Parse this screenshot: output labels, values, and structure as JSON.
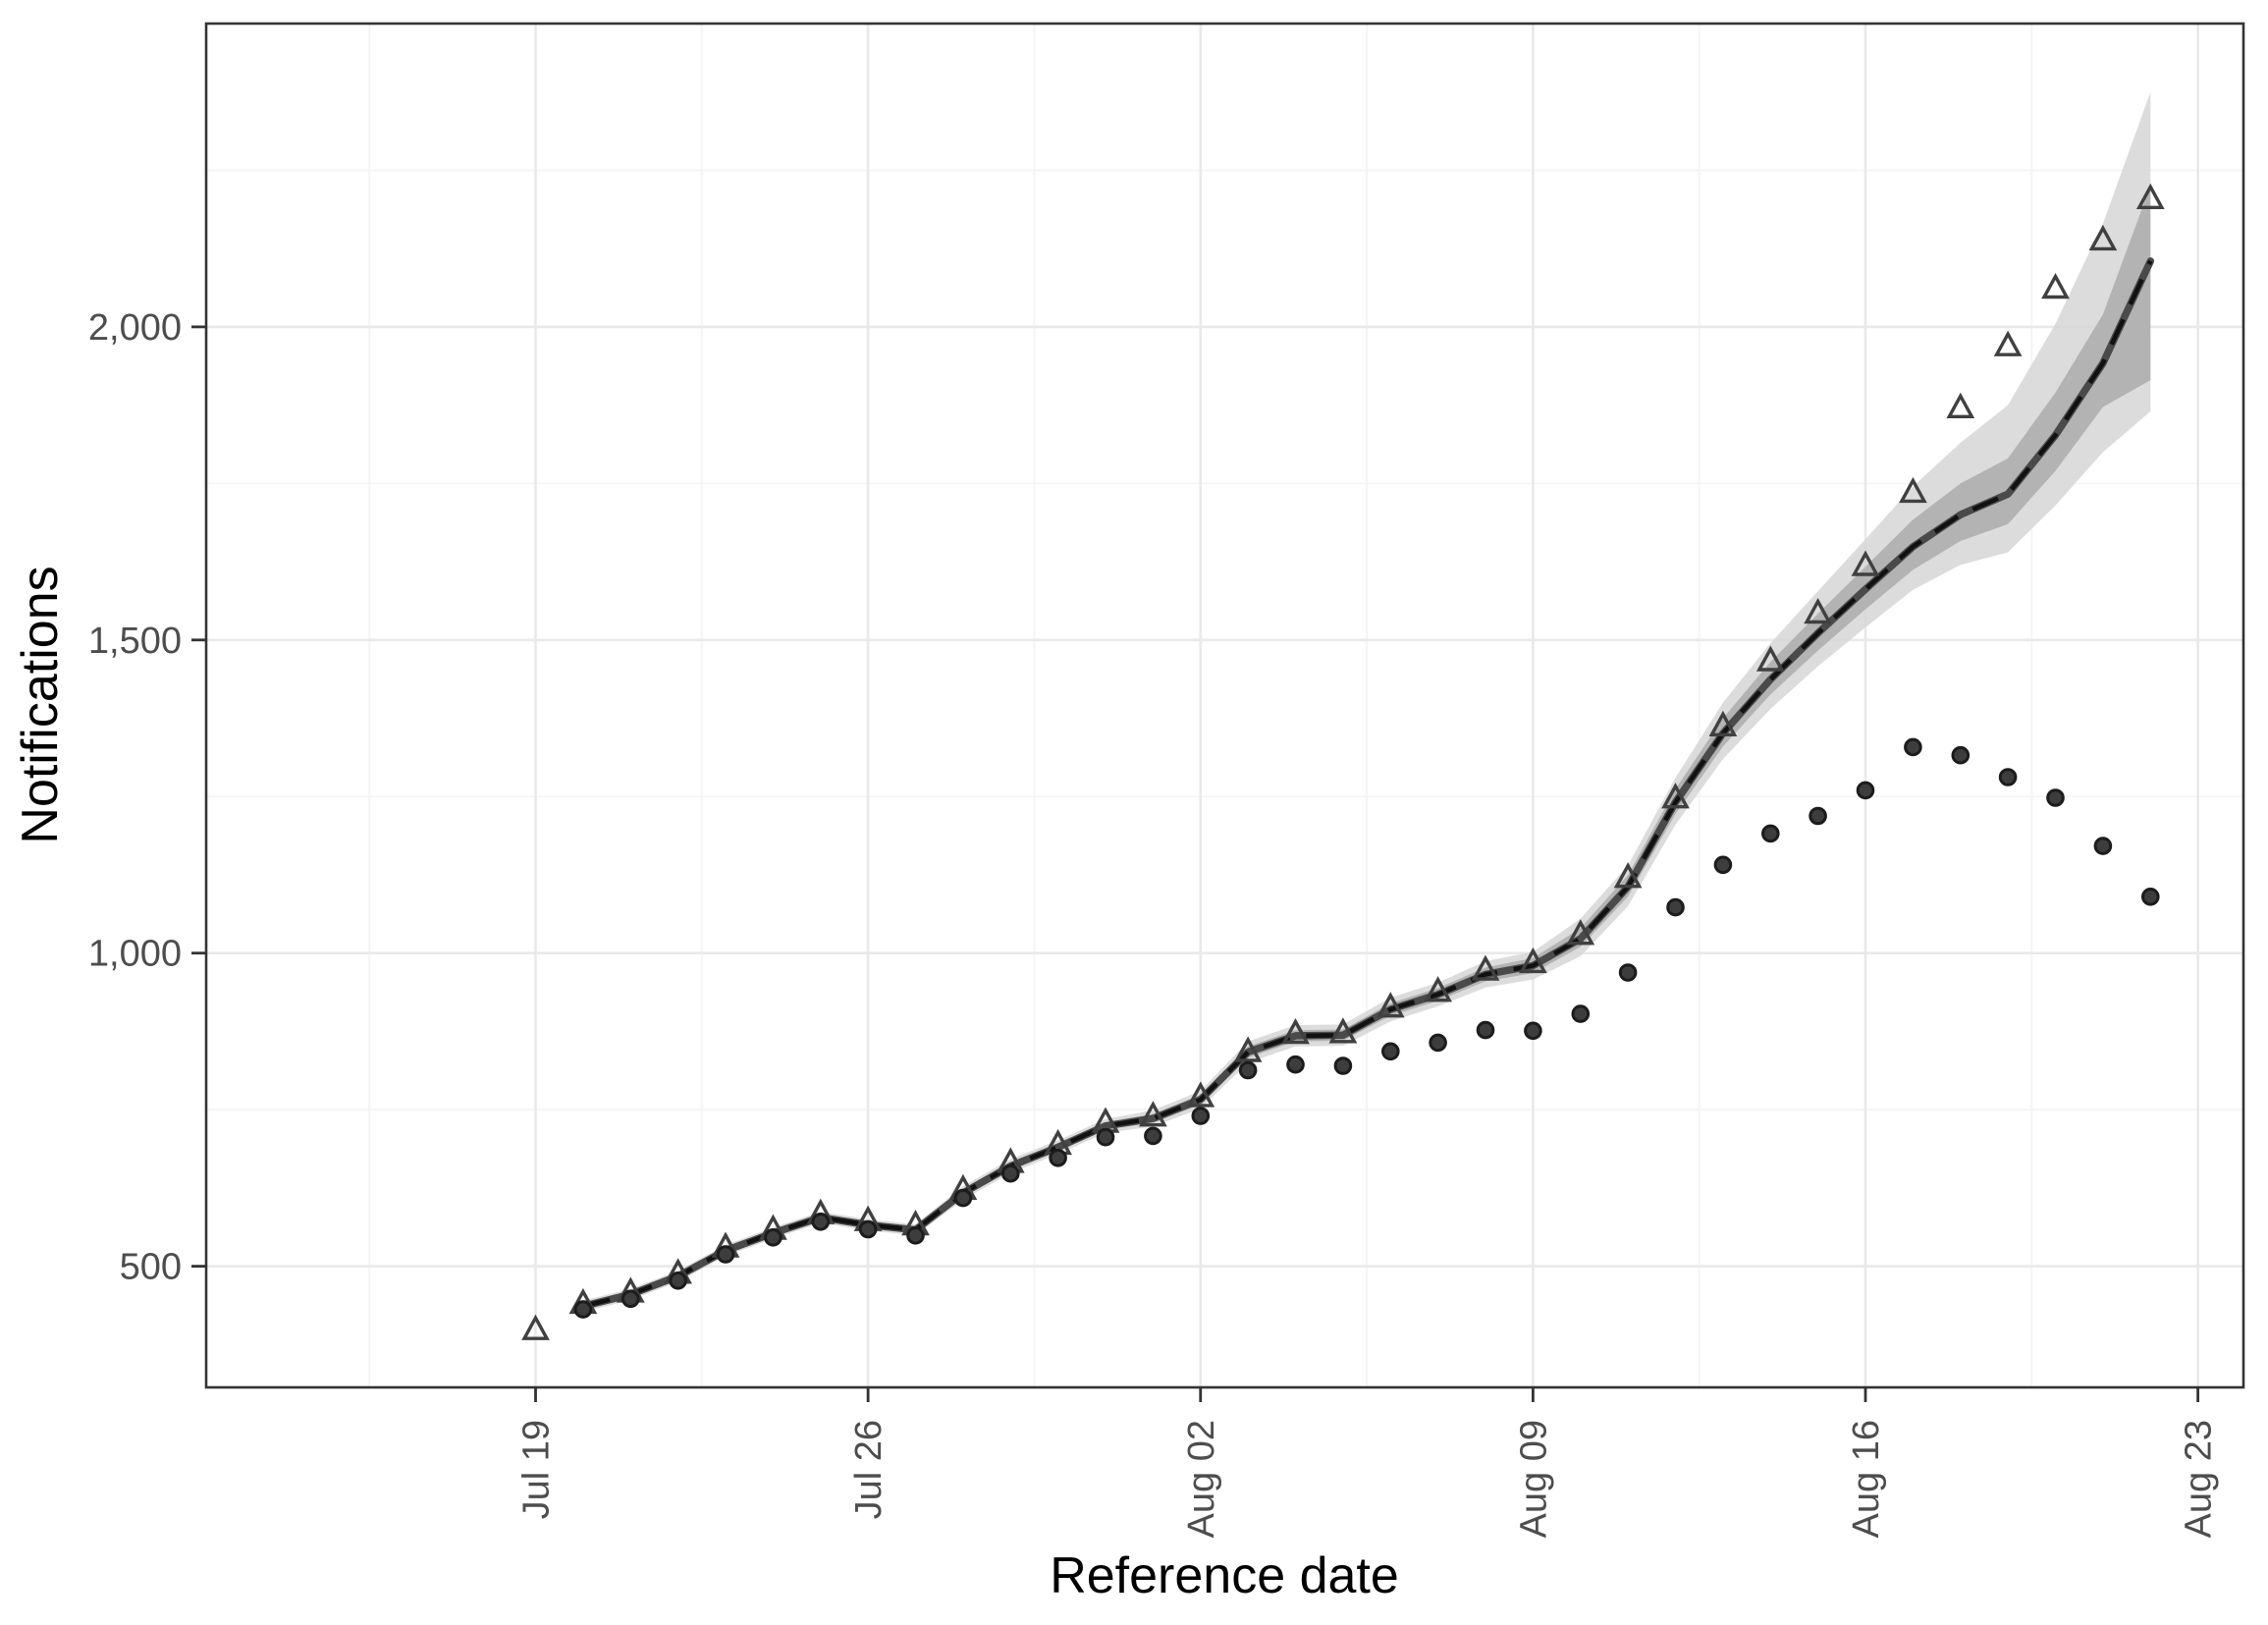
{
  "chart_data": {
    "type": "line",
    "title": "",
    "xlabel": "Reference date",
    "ylabel": "Notifications",
    "x_axis": {
      "tick_labels": [
        "Jul 19",
        "Jul 26",
        "Aug 02",
        "Aug 09",
        "Aug 16",
        "Aug 23"
      ],
      "tick_days": [
        0,
        7,
        14,
        21,
        28,
        35
      ],
      "minor_days": [
        -3.5,
        3.5,
        10.5,
        17.5,
        24.5,
        31.5
      ]
    },
    "y_axis": {
      "tick_labels": [
        "500",
        "1,000",
        "1,500",
        "2,000"
      ],
      "tick_values": [
        500,
        1000,
        1500,
        2000
      ],
      "minor_values": [
        750,
        1250,
        1750,
        2250
      ],
      "ylim": [
        305,
        2485
      ]
    },
    "grid": true,
    "legend": "none",
    "dates": [
      "Jul 19",
      "Jul 20",
      "Jul 21",
      "Jul 22",
      "Jul 23",
      "Jul 24",
      "Jul 25",
      "Jul 26",
      "Jul 27",
      "Jul 28",
      "Jul 29",
      "Jul 30",
      "Jul 31",
      "Aug 01",
      "Aug 02",
      "Aug 03",
      "Aug 04",
      "Aug 05",
      "Aug 06",
      "Aug 07",
      "Aug 08",
      "Aug 09",
      "Aug 10",
      "Aug 11",
      "Aug 12",
      "Aug 13",
      "Aug 14",
      "Aug 15",
      "Aug 16",
      "Aug 17",
      "Aug 18",
      "Aug 19",
      "Aug 20",
      "Aug 21",
      "Aug 22"
    ],
    "series": {
      "final_notifications_triangles": [
        398,
        440,
        458,
        488,
        530,
        558,
        583,
        572,
        565,
        622,
        665,
        694,
        729,
        739,
        770,
        842,
        871,
        872,
        913,
        938,
        972,
        984,
        1029,
        1120,
        1247,
        1362,
        1466,
        1542,
        1618,
        1735,
        1870,
        1969,
        2061,
        2138,
        2204
      ],
      "reported_to_date_circles": [
        null,
        431,
        448,
        477,
        519,
        546,
        571,
        559,
        549,
        609,
        648,
        673,
        706,
        708,
        740,
        813,
        822,
        820,
        843,
        857,
        877,
        876,
        903,
        969,
        1073,
        1141,
        1191,
        1219,
        1260,
        1329,
        1316,
        1281,
        1248,
        1171,
        1090
      ],
      "nowcast_median_line": [
        null,
        436,
        455,
        484,
        525,
        553,
        578,
        566,
        558,
        617,
        660,
        690,
        724,
        736,
        766,
        842,
        868,
        869,
        910,
        934,
        966,
        980,
        1023,
        1106,
        1241,
        1351,
        1437,
        1511,
        1581,
        1649,
        1700,
        1733,
        1827,
        1942,
        2105
      ],
      "ci50_lower": [
        null,
        431,
        450,
        479,
        520,
        548,
        573,
        561,
        553,
        611,
        654,
        684,
        718,
        729,
        758,
        833,
        859,
        860,
        900,
        924,
        955,
        968,
        1010,
        1090,
        1222,
        1330,
        1413,
        1483,
        1549,
        1612,
        1658,
        1685,
        1770,
        1872,
        1915
      ],
      "ci50_upper": [
        null,
        441,
        460,
        489,
        530,
        558,
        583,
        571,
        563,
        623,
        666,
        696,
        730,
        743,
        774,
        851,
        877,
        878,
        920,
        944,
        977,
        992,
        1040,
        1125,
        1262,
        1375,
        1465,
        1542,
        1617,
        1692,
        1750,
        1790,
        1895,
        2020,
        2225
      ],
      "ci90_lower": [
        null,
        427,
        446,
        475,
        516,
        544,
        569,
        557,
        549,
        606,
        649,
        679,
        713,
        723,
        752,
        825,
        851,
        852,
        891,
        915,
        945,
        958,
        995,
        1075,
        1205,
        1310,
        1390,
        1458,
        1520,
        1580,
        1620,
        1640,
        1715,
        1800,
        1865
      ],
      "ci90_upper": [
        null,
        445,
        464,
        493,
        534,
        562,
        587,
        575,
        567,
        628,
        671,
        701,
        735,
        749,
        780,
        859,
        885,
        886,
        929,
        953,
        987,
        1002,
        1055,
        1140,
        1280,
        1400,
        1495,
        1578,
        1661,
        1745,
        1815,
        1875,
        2005,
        2165,
        2375
      ]
    },
    "colors": {
      "background": "#ffffff",
      "panel_border": "#333333",
      "grid_major": "#e9e9e9",
      "grid_minor": "#f4f4f4",
      "ribbon_90": "#d6d6d6",
      "ribbon_50": "#ababab",
      "median_line": "#4a4a4a",
      "median_dash": "#111111",
      "triangle_stroke": "#404040",
      "circle_fill": "#3d3d3d",
      "circle_stroke": "#1c1c1c",
      "tick_mark": "#333333",
      "tick_label": "#4d4d4d",
      "axis_title": "#000000"
    }
  }
}
